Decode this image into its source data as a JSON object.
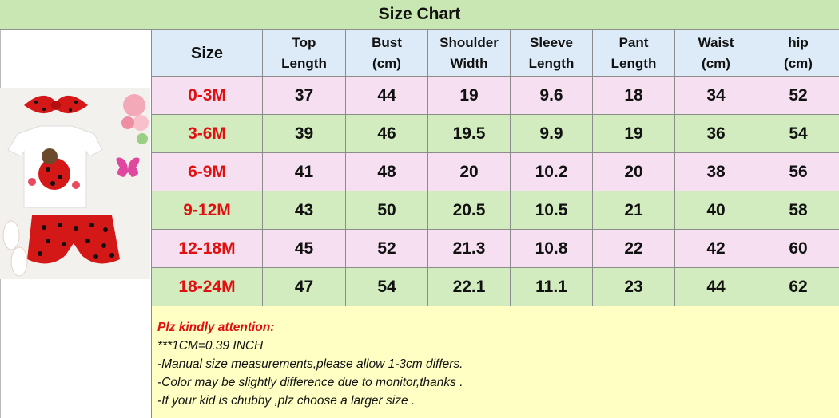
{
  "title": "Size Chart",
  "table": {
    "headers": [
      [
        "Size"
      ],
      [
        "Top",
        "Length"
      ],
      [
        "Bust",
        "(cm)"
      ],
      [
        "Shoulder",
        "Width"
      ],
      [
        "Sleeve",
        "Length"
      ],
      [
        "Pant",
        "Length"
      ],
      [
        "Waist",
        "(cm)"
      ],
      [
        "hip",
        "(cm)"
      ]
    ],
    "rows": [
      [
        "0-3M",
        "37",
        "44",
        "19",
        "9.6",
        "18",
        "34",
        "52"
      ],
      [
        "3-6M",
        "39",
        "46",
        "19.5",
        "9.9",
        "19",
        "36",
        "54"
      ],
      [
        "6-9M",
        "41",
        "48",
        "20",
        "10.2",
        "20",
        "38",
        "56"
      ],
      [
        "9-12M",
        "43",
        "50",
        "20.5",
        "10.5",
        "21",
        "40",
        "58"
      ],
      [
        "12-18M",
        "45",
        "52",
        "21.3",
        "10.8",
        "22",
        "42",
        "60"
      ],
      [
        "18-24M",
        "47",
        "54",
        "22.1",
        "11.1",
        "23",
        "44",
        "62"
      ]
    ]
  },
  "notes": {
    "heading": "Plz kindly attention:",
    "lines": [
      "***1CM=0.39 INCH",
      "-Manual size measurements,please allow 1-3cm differs.",
      "-Color may be slightly difference due to monitor,thanks .",
      "-If your kid is chubby ,plz choose a larger size ."
    ]
  },
  "colors": {
    "title_bg": "#c9e7b2",
    "header_bg": "#dcebf7",
    "row_pink": "#f6dff1",
    "row_green": "#d2ecbf",
    "size_text": "#e01010",
    "notes_bg": "#ffffc4"
  }
}
